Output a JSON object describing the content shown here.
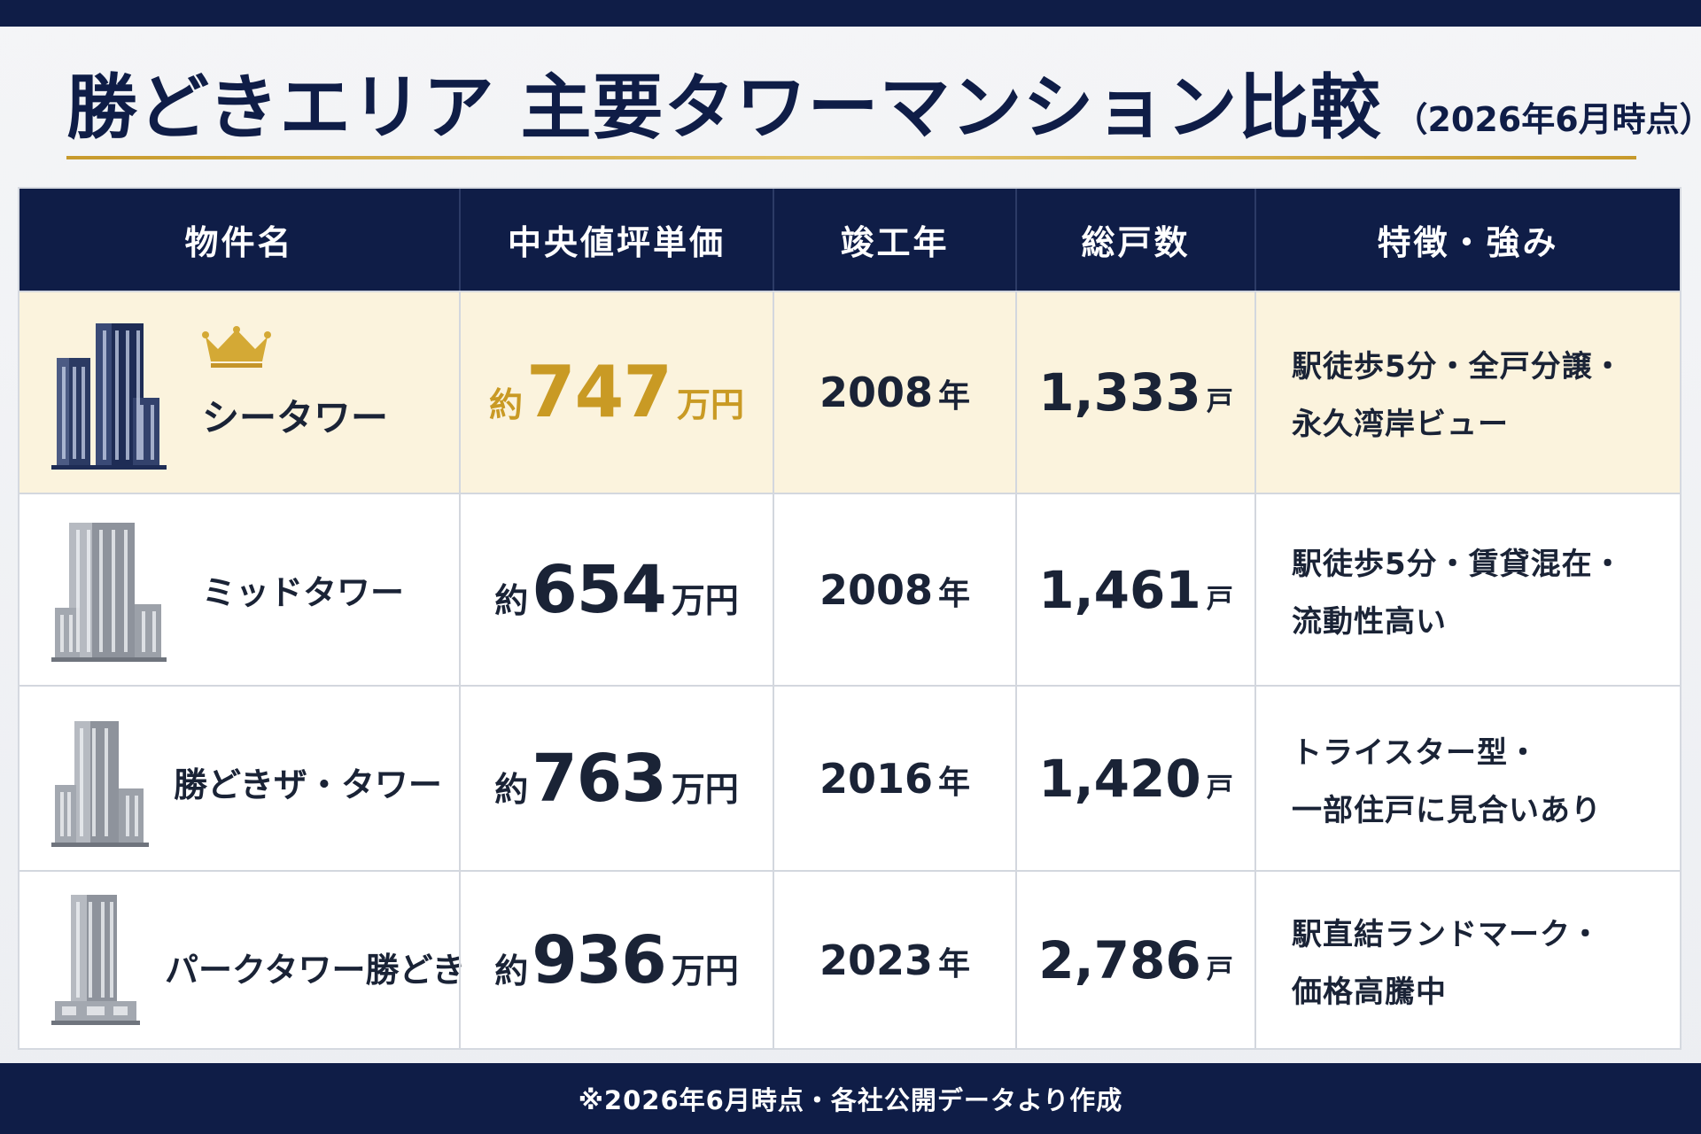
{
  "title": {
    "main": "勝どきエリア 主要タワーマンション比較",
    "sub": "（2026年6月時点）"
  },
  "table": {
    "headers": [
      "物件名",
      "中央値坪単価",
      "竣工年",
      "総戸数",
      "特徴・強み"
    ],
    "rows": [
      {
        "name": "シータワー",
        "price_prefix": "約",
        "price_value": "747",
        "price_suffix": "万円",
        "year_value": "2008",
        "year_suffix": "年",
        "units_value": "1,333",
        "units_suffix": "戸",
        "features": [
          "駅徒歩5分・全戸分譲・",
          "永久湾岸ビュー"
        ]
      },
      {
        "name": "ミッドタワー",
        "price_prefix": "約",
        "price_value": "654",
        "price_suffix": "万円",
        "year_value": "2008",
        "year_suffix": "年",
        "units_value": "1,461",
        "units_suffix": "戸",
        "features": [
          "駅徒歩5分・賃貸混在・",
          "流動性高い"
        ]
      },
      {
        "name": "勝どきザ・タワー",
        "price_prefix": "約",
        "price_value": "763",
        "price_suffix": "万円",
        "year_value": "2016",
        "year_suffix": "年",
        "units_value": "1,420",
        "units_suffix": "戸",
        "features": [
          "トライスター型・",
          "一部住戸に見合いあり"
        ]
      },
      {
        "name": "パークタワー勝どき",
        "price_prefix": "約",
        "price_value": "936",
        "price_suffix": "万円",
        "year_value": "2023",
        "year_suffix": "年",
        "units_value": "2,786",
        "units_suffix": "戸",
        "features": [
          "駅直結ランドマーク・",
          "価格高騰中"
        ]
      }
    ]
  },
  "footer": {
    "note": "※2026年6月時点・各社公開データより作成"
  },
  "icons": {
    "highlight": "crown-icon",
    "property": "building-icon"
  },
  "colors": {
    "navy": "#0f1d47",
    "gold": "#c99a24",
    "highlight_row": "#fbf3dd"
  }
}
